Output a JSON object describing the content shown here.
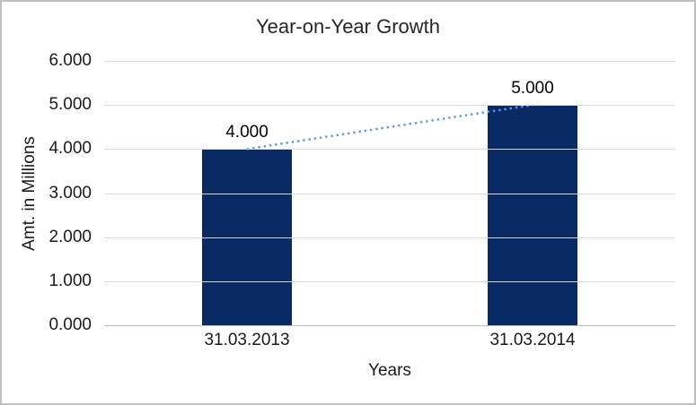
{
  "chart_data": {
    "type": "bar",
    "title": "Year-on-Year Growth",
    "xlabel": "Years",
    "ylabel": "Amt. in Millions",
    "categories": [
      "31.03.2013",
      "31.03.2014"
    ],
    "values": [
      4,
      5
    ],
    "value_labels": [
      "4.000",
      "5.000"
    ],
    "ylim": [
      0,
      6
    ],
    "ytick_labels": [
      "0.000",
      "1.000",
      "2.000",
      "3.000",
      "4.000",
      "5.000",
      "6.000"
    ],
    "grid": true,
    "legend_position": "none",
    "bar_color": "#0a2a66",
    "gridline_color": "#d9d9d9",
    "axis_line_color": "#bfbfbf",
    "trendline": {
      "style": "dotted",
      "color": "#5b9bd5",
      "from_value": 4,
      "to_value": 5
    }
  }
}
